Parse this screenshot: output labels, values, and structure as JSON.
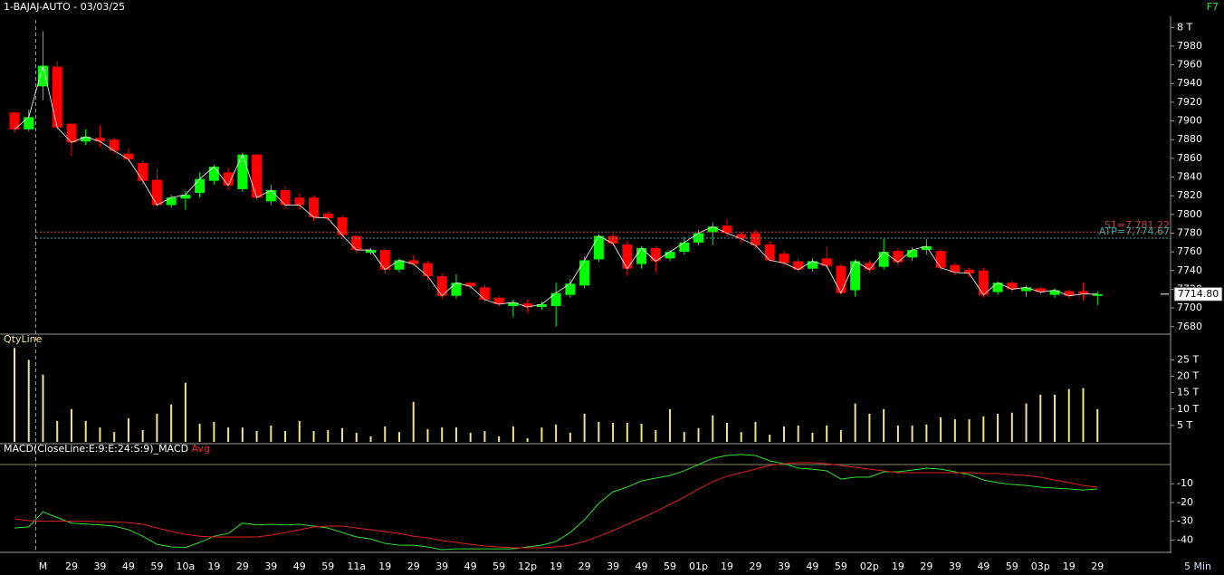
{
  "chart_data": [
    {
      "type": "candlestick",
      "title": "1-BAJAJ-AUTO - 03/03/25",
      "hotkey": "F7",
      "interval": "5 Min",
      "up_color": "#00ff00",
      "down_color": "#ff0000",
      "close_line_color": "#ffffff",
      "categories": [
        null,
        null,
        "M",
        null,
        "29",
        null,
        "39",
        null,
        "49",
        null,
        "59",
        null,
        "10a",
        null,
        "19",
        null,
        "29",
        null,
        "39",
        null,
        "49",
        null,
        "59",
        null,
        "11a",
        null,
        "19",
        null,
        "29",
        null,
        "39",
        null,
        "49",
        null,
        "59",
        null,
        "12p",
        null,
        "19",
        null,
        "29",
        null,
        "39",
        null,
        "49",
        null,
        "59",
        null,
        "01p",
        null,
        "19",
        null,
        "29",
        null,
        "39",
        null,
        "49",
        null,
        "59",
        null,
        "02p",
        null,
        "19",
        null,
        "29",
        null,
        "39",
        null,
        "49",
        null,
        "59",
        null,
        "03p",
        null,
        "19",
        null,
        "29"
      ],
      "open": [
        7909,
        7891,
        7937,
        7958,
        7897,
        7878,
        7882,
        7880,
        7865,
        7855,
        7837,
        7810,
        7817,
        7823,
        7836,
        7845,
        7827,
        7864,
        7814,
        7826,
        7818,
        7818,
        7801,
        7797,
        7777,
        7759,
        7762,
        7741,
        7751,
        7748,
        7734,
        7713,
        7727,
        7722,
        7711,
        7702,
        7705,
        7701,
        7702,
        7714,
        7724,
        7752,
        7777,
        7768,
        7747,
        7764,
        7753,
        7760,
        7770,
        7781,
        7788,
        7779,
        7780,
        7768,
        7758,
        7750,
        7742,
        7753,
        7745,
        7719,
        7748,
        7744,
        7761,
        7754,
        7762,
        7761,
        7746,
        7741,
        7740,
        7717,
        7727,
        7718,
        7721,
        7714,
        7718,
        7718,
        7713
      ],
      "high": [
        7910,
        7912,
        7996,
        7964,
        7898,
        7891,
        7895,
        7882,
        7871,
        7858,
        7849,
        7821,
        7825,
        7845,
        7853,
        7850,
        7866,
        7865,
        7832,
        7830,
        7823,
        7820,
        7803,
        7799,
        7778,
        7764,
        7764,
        7753,
        7756,
        7750,
        7737,
        7736,
        7728,
        7725,
        7713,
        7709,
        7709,
        7707,
        7727,
        7731,
        7755,
        7779,
        7780,
        7772,
        7766,
        7766,
        7762,
        7776,
        7784,
        7791,
        7795,
        7781,
        7783,
        7772,
        7761,
        7753,
        7753,
        7766,
        7747,
        7752,
        7751,
        7774,
        7764,
        7765,
        7774,
        7763,
        7748,
        7743,
        7743,
        7728,
        7729,
        7724,
        7723,
        7721,
        7720,
        7727,
        7718
      ],
      "low": [
        7887,
        7889,
        7922,
        7891,
        7862,
        7874,
        7872,
        7865,
        7856,
        7832,
        7808,
        7807,
        7805,
        7818,
        7832,
        7826,
        7824,
        7815,
        7810,
        7806,
        7805,
        7793,
        7793,
        7774,
        7758,
        7757,
        7737,
        7738,
        7745,
        7730,
        7710,
        7710,
        7720,
        7706,
        7701,
        7690,
        7695,
        7698,
        7680,
        7711,
        7721,
        7749,
        7766,
        7734,
        7742,
        7738,
        7750,
        7757,
        7767,
        7767,
        7777,
        7770,
        7764,
        7749,
        7745,
        7738,
        7739,
        7742,
        7714,
        7712,
        7738,
        7741,
        7745,
        7750,
        7757,
        7740,
        7735,
        7733,
        7711,
        7714,
        7717,
        7712,
        7714,
        7711,
        7710,
        7708,
        7703
      ],
      "close": [
        7891,
        7904,
        7959,
        7893,
        7877,
        7883,
        7878,
        7868,
        7859,
        7836,
        7810,
        7818,
        7821,
        7838,
        7851,
        7831,
        7864,
        7818,
        7826,
        7810,
        7810,
        7797,
        7796,
        7778,
        7762,
        7762,
        7741,
        7751,
        7747,
        7734,
        7713,
        7727,
        7723,
        7709,
        7704,
        7706,
        7701,
        7704,
        7716,
        7726,
        7751,
        7777,
        7769,
        7742,
        7764,
        7750,
        7760,
        7770,
        7780,
        7787,
        7780,
        7774,
        7767,
        7751,
        7748,
        7741,
        7750,
        7745,
        7716,
        7750,
        7741,
        7760,
        7749,
        7762,
        7766,
        7743,
        7738,
        7737,
        7714,
        7727,
        7720,
        7722,
        7717,
        7719,
        7713,
        7715,
        7714.8
      ],
      "levels": [
        {
          "label": "S1=7,781.22",
          "value": 7781.22,
          "color": "#c84040"
        },
        {
          "label": "ATP=7,774.67",
          "value": 7774.67,
          "color": "#3aa6a6"
        }
      ],
      "last_price": {
        "value": 7714.8,
        "label": "7714.80"
      },
      "ylim": [
        7673,
        8008
      ],
      "yticks": [
        7680,
        7700,
        7720,
        7740,
        7760,
        7780,
        7800,
        7820,
        7840,
        7860,
        7880,
        7900,
        7920,
        7940,
        7960,
        7980,
        {
          "value": 8000,
          "label": "8 T"
        }
      ]
    },
    {
      "type": "bar",
      "title": "QtyLine",
      "color": "#efe68a",
      "values": [
        28.6,
        25,
        20.5,
        6.4,
        10,
        6.4,
        4.4,
        3,
        7.2,
        3.6,
        8.6,
        11.4,
        18,
        5.5,
        6.1,
        4.4,
        4.4,
        3.3,
        5,
        3.3,
        6.4,
        3.3,
        3.6,
        4.2,
        2.8,
        1.7,
        4.7,
        3,
        12.2,
        3.9,
        4.4,
        4.4,
        2.8,
        3.3,
        1.7,
        4.7,
        1.1,
        4.4,
        5.3,
        2.8,
        8.6,
        6.1,
        5.8,
        5.8,
        5.5,
        3.6,
        10,
        3,
        4.2,
        8.1,
        5.8,
        3,
        6.1,
        2.2,
        4.7,
        5,
        2.8,
        5,
        3.6,
        11.7,
        8.6,
        10,
        5,
        5,
        5.3,
        7.5,
        6.9,
        6.9,
        7.8,
        8.6,
        8.9,
        11.7,
        14.4,
        14.4,
        16.1,
        16.4,
        10
      ],
      "ylim": [
        0,
        32
      ],
      "yticks": [
        {
          "value": 5,
          "label": "5 T"
        },
        {
          "value": 10,
          "label": "10 T"
        },
        {
          "value": 15,
          "label": "15 T"
        },
        {
          "value": 20,
          "label": "20 T"
        },
        {
          "value": 25,
          "label": "25 T"
        }
      ]
    },
    {
      "type": "line",
      "title": "MACD(CloseLine:E:9:E:24:S:9)",
      "series": [
        {
          "name": "_MACD",
          "color": "#33dd33",
          "values": [
            -33.6,
            -33,
            -25,
            -28,
            -31,
            -31.5,
            -32,
            -32.6,
            -34.5,
            -38,
            -42.3,
            -43.7,
            -44,
            -41.3,
            -38,
            -36.5,
            -31,
            -32,
            -31.6,
            -32,
            -31.6,
            -32.6,
            -33.6,
            -36,
            -38.4,
            -39.4,
            -41.8,
            -42.8,
            -42.8,
            -43.7,
            -45.2,
            -44.7,
            -44.7,
            -44.7,
            -44.7,
            -44.7,
            -43.7,
            -42.8,
            -40.8,
            -36,
            -29.2,
            -20.5,
            -14.3,
            -11.8,
            -8.5,
            -7,
            -5.6,
            -3.1,
            0.2,
            3.6,
            5.1,
            5.6,
            5.1,
            2.2,
            0.7,
            -1.7,
            -2.2,
            -3.1,
            -7.5,
            -6.5,
            -6.5,
            -3.6,
            -3.6,
            -2.7,
            -1.7,
            -2.2,
            -3.6,
            -5.1,
            -8,
            -9.4,
            -10.4,
            -10.9,
            -11.8,
            -12.3,
            -12.8,
            -13.3,
            -12.8
          ]
        },
        {
          "name": "Avg",
          "color": "#dd2222",
          "values": [
            -28.7,
            -29.7,
            -30,
            -30,
            -30,
            -30,
            -30.3,
            -30.3,
            -30.7,
            -31.6,
            -33.6,
            -35.5,
            -37,
            -38,
            -38.4,
            -38.4,
            -38.4,
            -38.4,
            -37.4,
            -36,
            -34.5,
            -33,
            -32.6,
            -32.6,
            -33.6,
            -34.5,
            -35.5,
            -36.5,
            -38,
            -38.9,
            -40.3,
            -41.3,
            -42.3,
            -43.2,
            -43.7,
            -44.2,
            -44.2,
            -44.2,
            -43.7,
            -42.8,
            -40.8,
            -38,
            -35,
            -31.6,
            -28.3,
            -24.9,
            -21,
            -17.2,
            -12.8,
            -8.9,
            -6,
            -4.1,
            -2.2,
            -0.2,
            0.7,
            1.2,
            1.2,
            0.7,
            -0.2,
            -1.2,
            -2.2,
            -3.1,
            -4.1,
            -4.1,
            -4.1,
            -4.1,
            -4.1,
            -4.1,
            -4.6,
            -4.6,
            -5.1,
            -5.6,
            -6.5,
            -8,
            -9.4,
            -10.9,
            -11.8
          ]
        }
      ],
      "ylim": [
        -46.6,
        10.4
      ],
      "yticks": [
        -10,
        -20,
        -30,
        -40
      ]
    }
  ]
}
